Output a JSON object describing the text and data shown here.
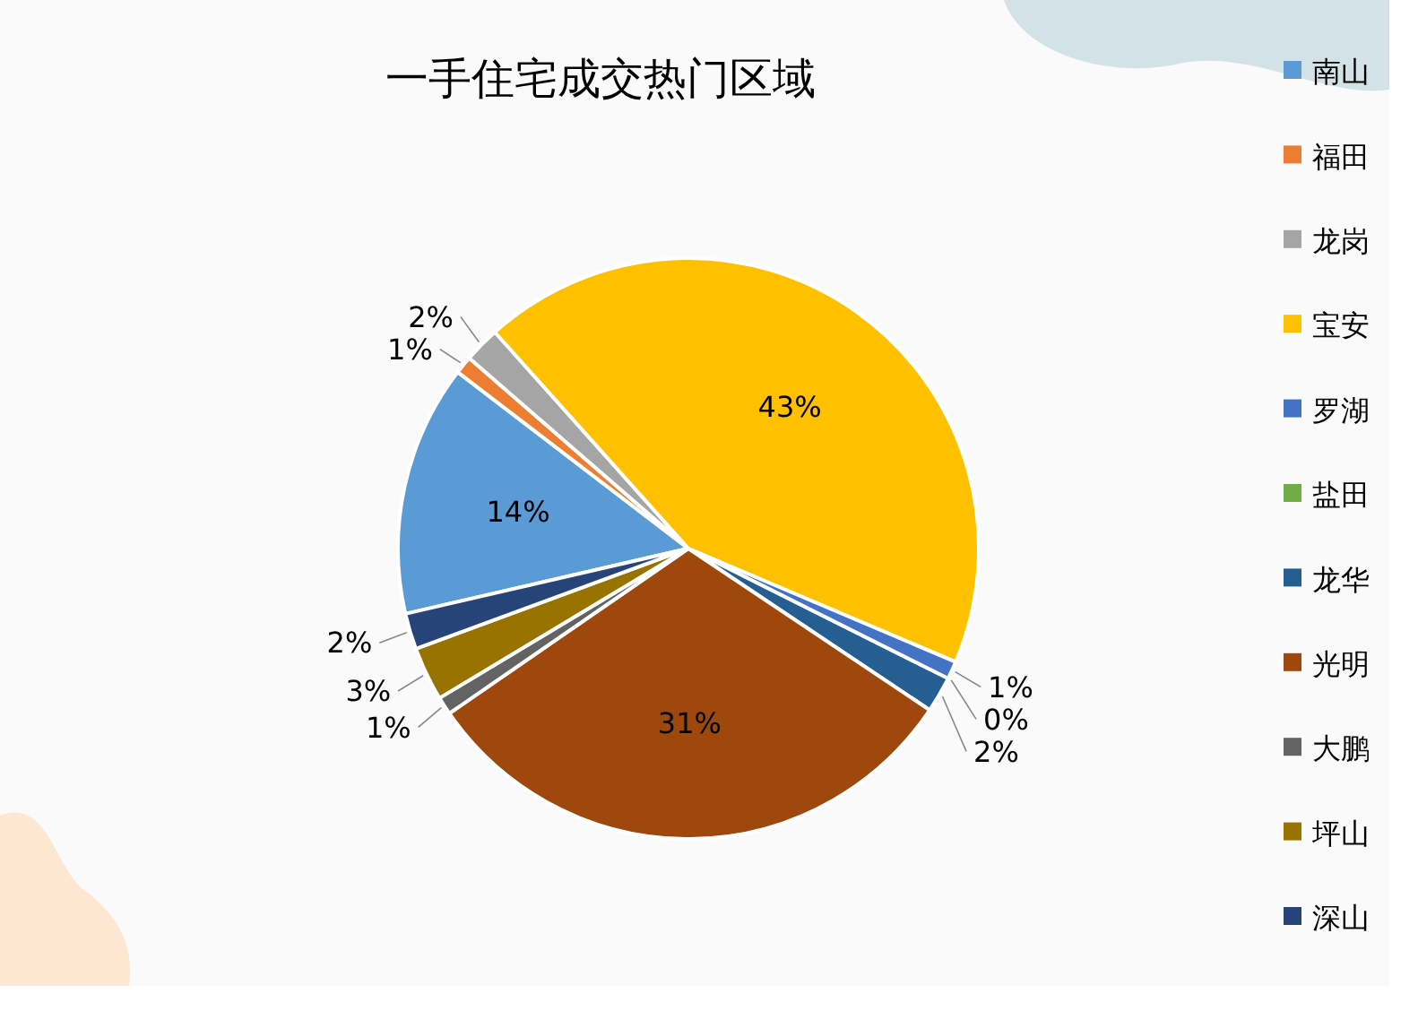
{
  "chart_data": {
    "type": "pie",
    "title": "一手住宅成交热门区域",
    "categories": [
      "南山",
      "福田",
      "龙岗",
      "宝安",
      "罗湖",
      "盐田",
      "龙华",
      "光明",
      "大鹏",
      "坪山",
      "深山"
    ],
    "values": [
      14,
      1,
      2,
      43,
      1,
      0,
      2,
      31,
      1,
      3,
      2
    ],
    "colors": [
      "#5b9bd5",
      "#ed7d31",
      "#a5a5a5",
      "#ffc000",
      "#4472c4",
      "#70ad47",
      "#255e91",
      "#9e480e",
      "#636363",
      "#997300",
      "#264478"
    ],
    "value_labels": [
      "14%",
      "1%",
      "2%",
      "43%",
      "1%",
      "0%",
      "2%",
      "31%",
      "1%",
      "3%",
      "2%"
    ],
    "legend": "right"
  }
}
